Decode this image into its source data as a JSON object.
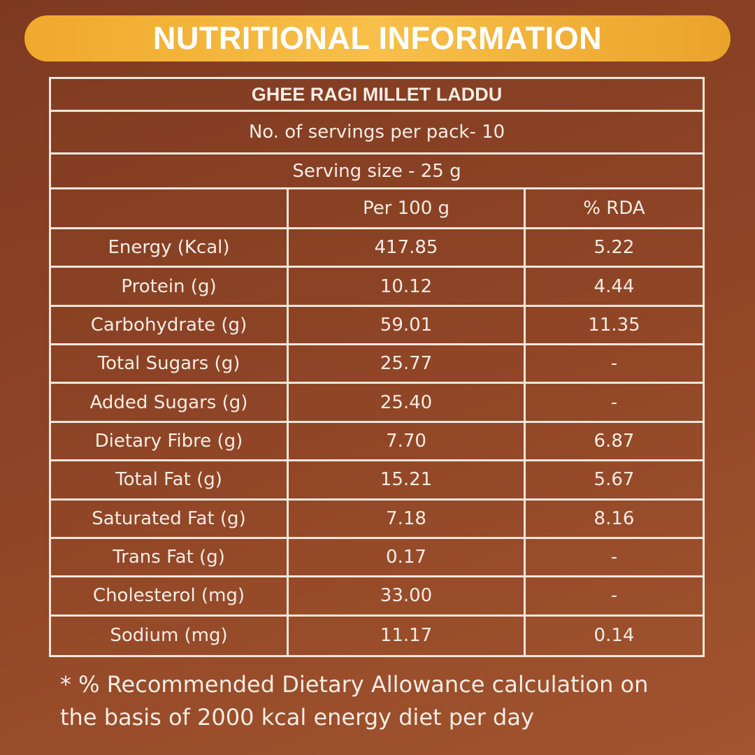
{
  "header": {
    "title": "NUTRITIONAL INFORMATION"
  },
  "table": {
    "title": "GHEE RAGI MILLET LADDU",
    "servings": "No. of servings per pack- 10",
    "serving_size": "Serving size - 25 g",
    "columns": [
      "Per 100 g",
      "% RDA"
    ],
    "rows": [
      [
        "Energy (Kcal)",
        "417.85",
        "5.22"
      ],
      [
        "Protein (g)",
        "10.12",
        "4.44"
      ],
      [
        "Carbohydrate (g)",
        "59.01",
        "11.35"
      ],
      [
        "Total Sugars (g)",
        "25.77",
        "-"
      ],
      [
        "Added Sugars (g)",
        "25.40",
        "-"
      ],
      [
        "Dietary Fibre (g)",
        "7.70",
        "6.87"
      ],
      [
        "Total Fat (g)",
        "15.21",
        "5.67"
      ],
      [
        "Saturated Fat (g)",
        "7.18",
        "8.16"
      ],
      [
        "Trans Fat (g)",
        "0.17",
        "-"
      ],
      [
        "Cholesterol (mg)",
        "33.00",
        "-"
      ],
      [
        "Sodium (mg)",
        "11.17",
        "0.14"
      ]
    ]
  },
  "footnote": [
    "* % Recommended Dietary Allowance calculation on",
    "the basis of 2000 kcal energy diet per day"
  ]
}
